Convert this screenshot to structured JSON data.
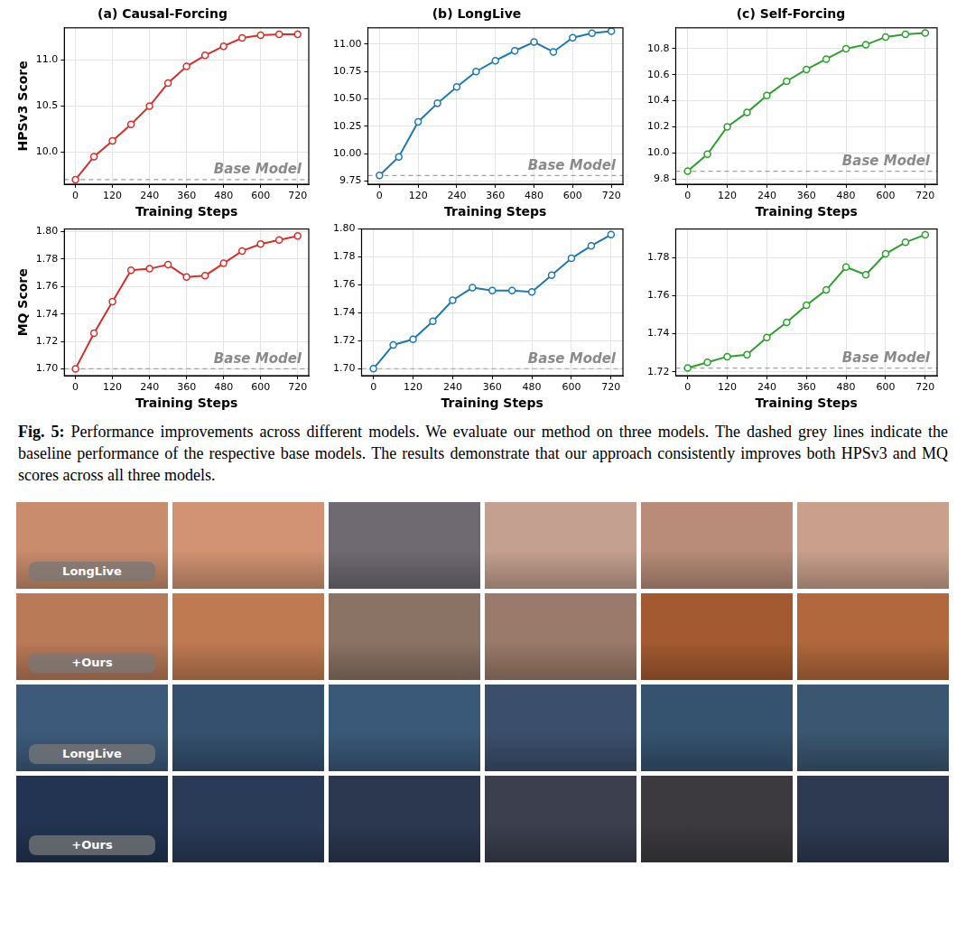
{
  "chart_data": [
    {
      "type": "line",
      "title": "(a) Causal-Forcing",
      "y_label": "HPSv3 Score",
      "x_label": "Training Steps",
      "x": [
        0,
        60,
        120,
        180,
        240,
        300,
        360,
        420,
        480,
        540,
        600,
        660,
        720
      ],
      "values": [
        9.7,
        9.95,
        10.12,
        10.3,
        10.5,
        10.75,
        10.93,
        11.05,
        11.15,
        11.24,
        11.27,
        11.28,
        11.28
      ],
      "color": "#d62f2a",
      "marker": "circle",
      "line_style": "solid",
      "grid": true,
      "xlim": [
        -36,
        756
      ],
      "xticks": [
        0,
        120,
        240,
        360,
        480,
        600,
        720
      ],
      "ylim": [
        9.65,
        11.35
      ],
      "yticks": [
        {
          "value": 10,
          "label": "10.0"
        },
        10.5,
        {
          "value": 11,
          "label": "11.0"
        }
      ],
      "baseline": {
        "value": 9.7,
        "label": "Base Model",
        "line_style": "dashed"
      }
    },
    {
      "type": "line",
      "title": "(b) LongLive",
      "x_label": "Training Steps",
      "x": [
        0,
        60,
        120,
        180,
        240,
        300,
        360,
        420,
        480,
        540,
        600,
        660,
        720
      ],
      "values": [
        9.8,
        9.97,
        10.29,
        10.46,
        10.61,
        10.75,
        10.85,
        10.94,
        11.02,
        10.93,
        11.06,
        11.1,
        11.12
      ],
      "color": "#1f77b4",
      "marker": "circle",
      "line_style": "solid",
      "grid": true,
      "xlim": [
        -36,
        756
      ],
      "xticks": [
        0,
        120,
        240,
        360,
        480,
        600,
        720
      ],
      "ylim": [
        9.72,
        11.15
      ],
      "yticks": [
        9.75,
        {
          "value": 10,
          "label": "10.00"
        },
        10.25,
        {
          "value": 10.5,
          "label": "10.50"
        },
        10.75,
        {
          "value": 11,
          "label": "11.00"
        }
      ],
      "baseline": {
        "value": 9.8,
        "label": "Base Model",
        "line_style": "dashed"
      }
    },
    {
      "type": "line",
      "title": "(c) Self-Forcing",
      "x_label": "Training Steps",
      "x": [
        0,
        60,
        120,
        180,
        240,
        300,
        360,
        420,
        480,
        540,
        600,
        660,
        720
      ],
      "values": [
        9.86,
        9.99,
        10.2,
        10.31,
        10.44,
        10.55,
        10.64,
        10.72,
        10.8,
        10.83,
        10.89,
        10.91,
        10.92
      ],
      "color": "#2ca02c",
      "marker": "circle",
      "line_style": "solid",
      "grid": true,
      "xlim": [
        -36,
        756
      ],
      "xticks": [
        0,
        120,
        240,
        360,
        480,
        600,
        720
      ],
      "ylim": [
        9.76,
        10.96
      ],
      "yticks": [
        9.8,
        {
          "value": 10,
          "label": "10.0"
        },
        10.2,
        10.4,
        10.6,
        10.8
      ],
      "baseline": {
        "value": 9.86,
        "label": "Base Model",
        "line_style": "dashed"
      }
    },
    {
      "type": "line",
      "y_label": "MQ Score",
      "x_label": "Training Steps",
      "x": [
        0,
        60,
        120,
        180,
        240,
        300,
        360,
        420,
        480,
        540,
        600,
        660,
        720
      ],
      "values": [
        1.7,
        1.726,
        1.749,
        1.772,
        1.773,
        1.776,
        1.767,
        1.768,
        1.777,
        1.786,
        1.791,
        1.794,
        1.797
      ],
      "color": "#d62f2a",
      "marker": "circle",
      "line_style": "solid",
      "grid": true,
      "xlim": [
        -36,
        756
      ],
      "xticks": [
        0,
        120,
        240,
        360,
        480,
        600,
        720
      ],
      "ylim": [
        1.695,
        1.802
      ],
      "yticks": [
        {
          "value": 1.7,
          "label": "1.70"
        },
        1.72,
        1.74,
        1.76,
        1.78,
        {
          "value": 1.8,
          "label": "1.80"
        }
      ],
      "baseline": {
        "value": 1.7,
        "label": "Base Model",
        "line_style": "dashed"
      }
    },
    {
      "type": "line",
      "x_label": "Training Steps",
      "x": [
        0,
        60,
        120,
        180,
        240,
        300,
        360,
        420,
        480,
        540,
        600,
        660,
        720
      ],
      "values": [
        1.7,
        1.717,
        1.721,
        1.734,
        1.749,
        1.758,
        1.756,
        1.756,
        1.755,
        1.767,
        1.779,
        1.788,
        1.796
      ],
      "color": "#1f77b4",
      "marker": "circle",
      "line_style": "solid",
      "grid": true,
      "xlim": [
        -36,
        756
      ],
      "xticks": [
        0,
        120,
        240,
        360,
        480,
        600,
        720
      ],
      "ylim": [
        1.695,
        1.8
      ],
      "yticks": [
        {
          "value": 1.7,
          "label": "1.70"
        },
        1.72,
        1.74,
        1.76,
        1.78,
        {
          "value": 1.8,
          "label": "1.80"
        }
      ],
      "baseline": {
        "value": 1.7,
        "label": "Base Model",
        "line_style": "dashed"
      }
    },
    {
      "type": "line",
      "x_label": "Training Steps",
      "x": [
        0,
        60,
        120,
        180,
        240,
        300,
        360,
        420,
        480,
        540,
        600,
        660,
        720
      ],
      "values": [
        1.722,
        1.725,
        1.728,
        1.729,
        1.738,
        1.746,
        1.755,
        1.763,
        1.775,
        1.771,
        1.782,
        1.788,
        1.792
      ],
      "color": "#2ca02c",
      "marker": "circle",
      "line_style": "solid",
      "grid": true,
      "xlim": [
        -36,
        756
      ],
      "xticks": [
        0,
        120,
        240,
        360,
        480,
        600,
        720
      ],
      "ylim": [
        1.718,
        1.795
      ],
      "yticks": [
        1.72,
        1.74,
        1.76,
        1.78
      ],
      "baseline": {
        "value": 1.722,
        "label": "Base Model",
        "line_style": "dashed"
      }
    }
  ],
  "caption": {
    "label": "Fig. 5:",
    "text": "Performance improvements across different models. We evaluate our method on three models. The dashed grey lines indicate the baseline performance of the respective base models. The results demonstrate that our approach consistently improves both HPSv3 and MQ scores across all three models."
  },
  "frame_rows": [
    {
      "label": "LongLive"
    },
    {
      "label": "+Ours"
    },
    {
      "label": "LongLive"
    },
    {
      "label": "+Ours"
    }
  ]
}
